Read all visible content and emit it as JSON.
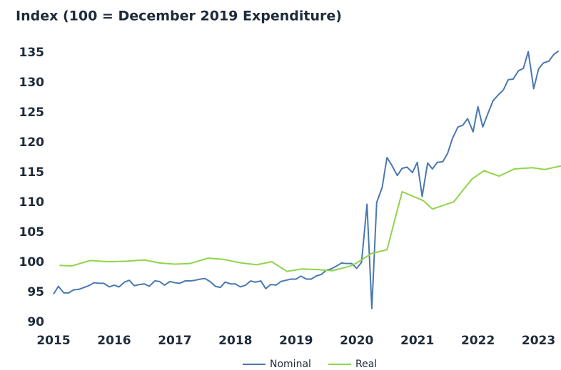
{
  "chart_data": {
    "type": "line",
    "title": "Index (100 = December 2019 Expenditure)",
    "xlim": [
      2015,
      2023.37
    ],
    "xticks": [
      2015,
      2016,
      2017,
      2018,
      2019,
      2020,
      2021,
      2022,
      2023
    ],
    "ylim": [
      90,
      136
    ],
    "yticks": [
      90,
      95,
      100,
      105,
      110,
      115,
      120,
      125,
      130,
      135
    ],
    "grid": false,
    "legend": "bottom",
    "series": [
      {
        "name": "Nominal",
        "color": "#4a78b0",
        "x": [
          2015,
          2015.08,
          2015.17,
          2015.25,
          2015.33,
          2015.42,
          2015.5,
          2015.58,
          2015.67,
          2015.75,
          2015.83,
          2015.92,
          2016,
          2016.08,
          2016.17,
          2016.25,
          2016.33,
          2016.42,
          2016.5,
          2016.58,
          2016.67,
          2016.75,
          2016.83,
          2016.92,
          2017,
          2017.08,
          2017.17,
          2017.25,
          2017.33,
          2017.42,
          2017.5,
          2017.58,
          2017.67,
          2017.75,
          2017.83,
          2017.92,
          2018,
          2018.08,
          2018.17,
          2018.25,
          2018.33,
          2018.42,
          2018.5,
          2018.58,
          2018.67,
          2018.75,
          2018.83,
          2018.92,
          2019,
          2019.08,
          2019.17,
          2019.25,
          2019.33,
          2019.42,
          2019.5,
          2019.58,
          2019.67,
          2019.75,
          2019.83,
          2019.92,
          2020,
          2020.08,
          2020.17,
          2020.25,
          2020.33,
          2020.42,
          2020.5,
          2020.58,
          2020.67,
          2020.75,
          2020.83,
          2020.92,
          2021,
          2021.08,
          2021.17,
          2021.25,
          2021.33,
          2021.42,
          2021.5,
          2021.58,
          2021.67,
          2021.75,
          2021.83,
          2021.92,
          2022,
          2022.08,
          2022.17,
          2022.25,
          2022.33,
          2022.42,
          2022.5,
          2022.58,
          2022.67,
          2022.75,
          2022.83,
          2022.92,
          2023,
          2023.08,
          2023.17,
          2023.25,
          2023.33
        ],
        "values": [
          94.7,
          96.0,
          94.9,
          94.9,
          95.4,
          95.5,
          95.8,
          96.1,
          96.6,
          96.5,
          96.5,
          95.9,
          96.2,
          95.9,
          96.7,
          97.0,
          96.1,
          96.3,
          96.4,
          96.0,
          96.9,
          96.8,
          96.2,
          96.8,
          96.6,
          96.5,
          96.9,
          96.9,
          97.0,
          97.2,
          97.3,
          96.8,
          96.0,
          95.8,
          96.7,
          96.4,
          96.4,
          95.9,
          96.2,
          96.9,
          96.7,
          96.9,
          95.6,
          96.3,
          96.2,
          96.8,
          97.0,
          97.2,
          97.2,
          97.7,
          97.2,
          97.2,
          97.7,
          98.0,
          98.7,
          98.9,
          99.4,
          99.9,
          99.8,
          99.8,
          99.0,
          100.0,
          109.7,
          92.3,
          110.0,
          112.5,
          117.5,
          116.2,
          114.5,
          115.7,
          115.9,
          115.0,
          116.7,
          111.0,
          116.6,
          115.6,
          116.7,
          116.8,
          118.2,
          120.7,
          122.6,
          122.9,
          124.0,
          121.8,
          126.0,
          122.6,
          125.0,
          127.0,
          127.9,
          128.8,
          130.5,
          130.6,
          132.0,
          132.4,
          135.2,
          129.0,
          132.3,
          133.3,
          133.6,
          134.7,
          135.3
        ]
      },
      {
        "name": "Real",
        "color": "#8fd44a",
        "x": [
          2015.1,
          2015.3,
          2015.6,
          2015.9,
          2016.2,
          2016.5,
          2016.75,
          2017.0,
          2017.25,
          2017.55,
          2017.8,
          2018.1,
          2018.35,
          2018.6,
          2018.85,
          2019.1,
          2019.35,
          2019.6,
          2019.9,
          2020.0,
          2020.25,
          2020.5,
          2020.75,
          2021.1,
          2021.25,
          2021.6,
          2021.9,
          2022.1,
          2022.35,
          2022.6,
          2022.9,
          2023.1,
          2023.37
        ],
        "values": [
          99.5,
          99.4,
          100.3,
          100.1,
          100.2,
          100.4,
          99.9,
          99.7,
          99.8,
          100.7,
          100.5,
          99.9,
          99.6,
          100.1,
          98.5,
          98.9,
          98.8,
          98.6,
          99.4,
          99.9,
          101.5,
          102.1,
          111.8,
          110.3,
          108.9,
          110.1,
          113.9,
          115.3,
          114.4,
          115.6,
          115.8,
          115.5,
          116.1
        ]
      }
    ]
  }
}
